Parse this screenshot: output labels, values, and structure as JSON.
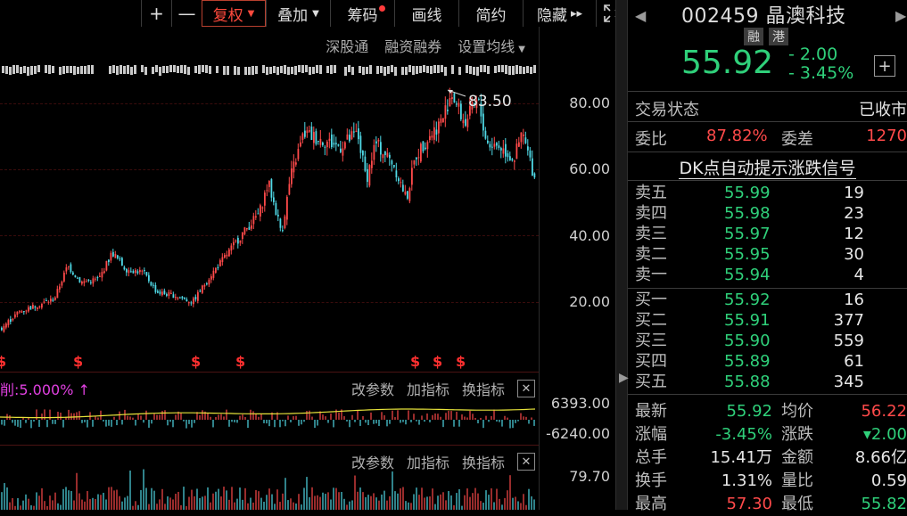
{
  "toolbar": {
    "zoom_in": "+",
    "zoom_out": "—",
    "fuquan": "复权",
    "overlay": "叠加",
    "chips": "筹码",
    "draw": "画线",
    "simple": "简约",
    "hide": "隐藏",
    "more": "▸▸"
  },
  "chart_links": [
    "深股通",
    "融资融券",
    "设置均线"
  ],
  "price_axis": [
    "80.00",
    "60.00",
    "40.00",
    "20.00"
  ],
  "chart_data": {
    "type": "candlestick",
    "y_axis_ticks": [
      80,
      60,
      40,
      20
    ],
    "max_label": "83.50",
    "trend_points": [
      [
        0,
        12
      ],
      [
        20,
        17
      ],
      [
        40,
        19
      ],
      [
        60,
        21
      ],
      [
        75,
        31
      ],
      [
        90,
        26
      ],
      [
        110,
        27
      ],
      [
        125,
        35
      ],
      [
        140,
        30
      ],
      [
        160,
        29
      ],
      [
        175,
        23
      ],
      [
        195,
        22
      ],
      [
        215,
        20
      ],
      [
        235,
        28
      ],
      [
        255,
        35
      ],
      [
        275,
        42
      ],
      [
        290,
        47
      ],
      [
        300,
        56
      ],
      [
        315,
        41
      ],
      [
        325,
        58
      ],
      [
        340,
        71
      ],
      [
        360,
        69
      ],
      [
        380,
        67
      ],
      [
        400,
        71
      ],
      [
        410,
        57
      ],
      [
        420,
        68
      ],
      [
        440,
        62
      ],
      [
        455,
        51
      ],
      [
        465,
        64
      ],
      [
        480,
        70
      ],
      [
        495,
        75
      ],
      [
        505,
        83.5
      ],
      [
        520,
        74
      ],
      [
        535,
        81
      ],
      [
        545,
        68
      ],
      [
        560,
        67
      ],
      [
        575,
        63
      ],
      [
        585,
        71
      ],
      [
        600,
        56
      ]
    ]
  },
  "signal_marks": [
    "$",
    "$",
    "$",
    "$",
    "$",
    "$",
    "$"
  ],
  "indicator1": {
    "label": "削:5.000% ↑",
    "buttons": [
      "改参数",
      "加指标",
      "换指标"
    ],
    "axis": [
      "6393.00",
      "-6240.00"
    ]
  },
  "indicator2": {
    "buttons": [
      "改参数",
      "加指标",
      "换指标"
    ],
    "axis": [
      "79.70"
    ]
  },
  "quote": {
    "code": "002459",
    "name": "晶澳科技",
    "badges": [
      "融",
      "港"
    ],
    "price": "55.92",
    "change": "- 2.00",
    "change_pct": "- 3.45%",
    "plus": "+",
    "status_label": "交易状态",
    "status_value": "已收市",
    "weibi_label": "委比",
    "weibi_value": "87.82%",
    "weicha_label": "委差",
    "weicha_value": "1270",
    "dk_signal": "DK点自动提示涨跌信号",
    "asks": [
      {
        "name": "卖五",
        "price": "55.99",
        "vol": "19"
      },
      {
        "name": "卖四",
        "price": "55.98",
        "vol": "23"
      },
      {
        "name": "卖三",
        "price": "55.97",
        "vol": "12"
      },
      {
        "name": "卖二",
        "price": "55.95",
        "vol": "30"
      },
      {
        "name": "卖一",
        "price": "55.94",
        "vol": "4"
      }
    ],
    "bids": [
      {
        "name": "买一",
        "price": "55.92",
        "vol": "16"
      },
      {
        "name": "买二",
        "price": "55.91",
        "vol": "377"
      },
      {
        "name": "买三",
        "price": "55.90",
        "vol": "559"
      },
      {
        "name": "买四",
        "price": "55.89",
        "vol": "61"
      },
      {
        "name": "买五",
        "price": "55.88",
        "vol": "345"
      }
    ],
    "stats": [
      {
        "l1": "最新",
        "v1": "55.92",
        "l2": "均价",
        "v2": "56.22"
      },
      {
        "l1": "涨幅",
        "v1": "-3.45%",
        "l2": "涨跌",
        "v2": "▾2.00"
      },
      {
        "l1": "总手",
        "v1": "15.41万",
        "l2": "金额",
        "v2": "8.66亿"
      },
      {
        "l1": "换手",
        "v1": "1.31%",
        "l2": "量比",
        "v2": "0.59"
      },
      {
        "l1": "最高",
        "v1": "57.30",
        "l2": "最低",
        "v2": "55.82"
      }
    ]
  },
  "colors": {
    "up": "#ff4a4a",
    "down": "#2fd07a",
    "candle_down": "#4fd9e6",
    "accent_active": "#ff4a3d",
    "ma_line": "#e6e23a"
  }
}
